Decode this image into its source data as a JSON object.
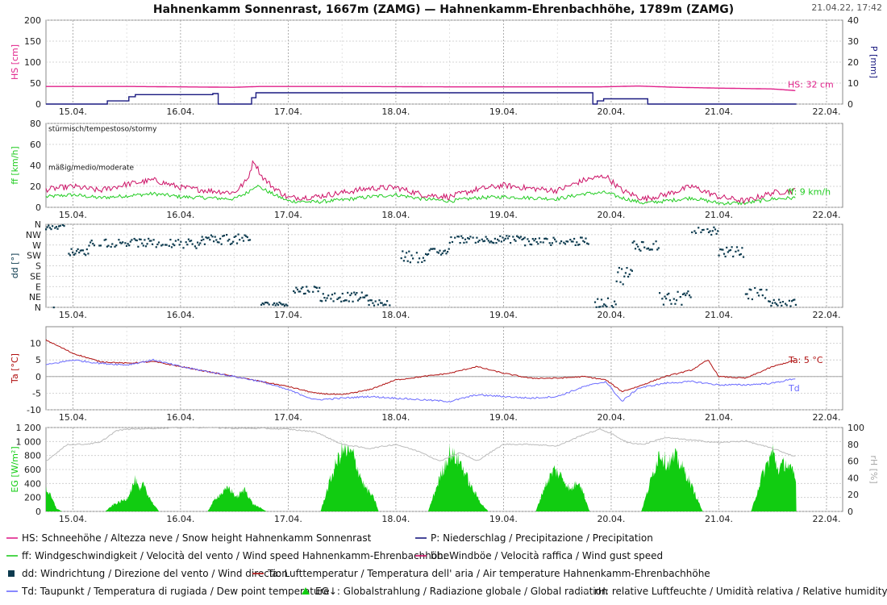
{
  "header": {
    "title": "Hahnenkamm Sonnenrast, 1667m (ZAMG) — Hahnenkamm-Ehrenbachhöhe, 1789m (ZAMG)",
    "timestamp": "21.04.22, 17:42"
  },
  "colors": {
    "HS": "#e0218a",
    "P": "#1a1a80",
    "ff": "#22cc22",
    "bb": "#cc1166",
    "dd": "#0d3b4f",
    "Ta": "#b01010",
    "Td": "#6b6bff",
    "EG": "#11cc11",
    "rH": "#bbbbbb"
  },
  "legend": [
    {
      "key": "HS",
      "symbol": "line",
      "text": "HS: Schneehöhe / Altezza neve / Snow height  Hahnenkamm Sonnenrast"
    },
    {
      "key": "P",
      "symbol": "line",
      "text": "P: Niederschlag / Precipitazione / Precipitation"
    },
    {
      "key": "ff",
      "symbol": "line",
      "text": "ff: Windgeschwindigkeit / Velocità del vento / Wind speed  Hahnenkamm-Ehrenbachhöhe"
    },
    {
      "key": "bb",
      "symbol": "line",
      "text": "bb: Windböe / Velocità raffica / Wind gust speed"
    },
    {
      "key": "dd",
      "symbol": "square",
      "text": "dd: Windrichtung / Direzione del vento / Wind direction"
    },
    {
      "key": "Ta",
      "symbol": "line",
      "text": "Ta: Lufttemperatur / Temperatura dell' aria / Air temperature  Hahnenkamm-Ehrenbachhöhe"
    },
    {
      "key": "Td",
      "symbol": "line",
      "text": "Td: Taupunkt / Temperatura di rugiada / Dew point temperature"
    },
    {
      "key": "EG",
      "symbol": "triangle",
      "text": "EG↓: Globalstrahlung / Radiazione globale / Global radiation"
    },
    {
      "key": "rH",
      "symbol": "line",
      "text": "rH: relative Luftfeuchte / Umidità relativa / Relative humidity"
    }
  ],
  "chart_data": [
    {
      "type": "line",
      "x_ticks": [
        "15.04.",
        "16.04.",
        "17.04.",
        "18.04.",
        "19.04.",
        "20.04.",
        "21.04.",
        "22.04."
      ],
      "ylabel": "HS [cm]",
      "ylim": [
        0,
        200
      ],
      "y_ticks": [
        0,
        50,
        100,
        150,
        200
      ],
      "y2label": "P [mm]",
      "y2lim": [
        0,
        40
      ],
      "y2_ticks": [
        0,
        10,
        20,
        30,
        40
      ],
      "end_label": "HS: 32 cm",
      "series": [
        {
          "key": "HS",
          "axis": "y",
          "x": [
            14.75,
            15.5,
            16.5,
            16.75,
            17.5,
            18.5,
            19.5,
            19.9,
            20.25,
            20.6,
            21.0,
            21.5,
            21.72
          ],
          "values": [
            42,
            42,
            40,
            42,
            42,
            41,
            41,
            41,
            43,
            40,
            38,
            36,
            32
          ]
        },
        {
          "key": "P",
          "axis": "y2",
          "step": true,
          "x": [
            14.75,
            15.27,
            15.32,
            15.37,
            15.52,
            15.58,
            16.3,
            16.35,
            16.62,
            16.66,
            16.7,
            17.5,
            19.83,
            19.87,
            19.93,
            20.3,
            20.34,
            21.72
          ],
          "values": [
            0,
            0,
            1.5,
            1.5,
            3.5,
            4.5,
            5,
            0,
            0,
            3,
            5.4,
            5.4,
            0,
            1.5,
            2.5,
            2.5,
            0,
            0
          ]
        }
      ]
    },
    {
      "type": "line",
      "x_ticks": [
        "15.04.",
        "16.04.",
        "17.04.",
        "18.04.",
        "19.04.",
        "20.04.",
        "21.04.",
        "22.04."
      ],
      "ylabel": "ff [km/h]",
      "ylim": [
        0,
        80
      ],
      "y_ticks": [
        0,
        20,
        40,
        60,
        80
      ],
      "annotations": [
        {
          "text": "stürmisch/tempestoso/stormy",
          "value": 75
        },
        {
          "text": "mäßig/medio/moderate",
          "value": 38
        }
      ],
      "end_label": "ff: 9 km/h",
      "series": [
        {
          "key": "ff",
          "x": [
            14.75,
            15.0,
            15.25,
            15.5,
            15.75,
            16.0,
            16.25,
            16.5,
            16.62,
            16.7,
            16.85,
            17.0,
            17.25,
            17.5,
            17.75,
            18.0,
            18.25,
            18.5,
            18.75,
            19.0,
            19.25,
            19.5,
            19.75,
            19.95,
            20.1,
            20.3,
            20.5,
            20.75,
            21.0,
            21.25,
            21.5,
            21.72
          ],
          "values": [
            10,
            12,
            9,
            11,
            13,
            10,
            9,
            8,
            14,
            21,
            13,
            6,
            5,
            7,
            10,
            12,
            8,
            6,
            9,
            10,
            9,
            8,
            13,
            14,
            9,
            4,
            6,
            9,
            4,
            4,
            8,
            9
          ]
        },
        {
          "key": "bb",
          "x": [
            14.75,
            15.0,
            15.25,
            15.5,
            15.75,
            16.0,
            16.25,
            16.5,
            16.62,
            16.68,
            16.75,
            16.85,
            17.0,
            17.25,
            17.5,
            17.75,
            18.0,
            18.25,
            18.5,
            18.75,
            19.0,
            19.25,
            19.5,
            19.75,
            19.95,
            20.1,
            20.3,
            20.5,
            20.75,
            21.0,
            21.25,
            21.5,
            21.72
          ],
          "values": [
            17,
            20,
            16,
            22,
            26,
            19,
            16,
            14,
            26,
            45,
            30,
            20,
            9,
            10,
            14,
            18,
            19,
            12,
            10,
            17,
            21,
            18,
            16,
            26,
            30,
            16,
            8,
            12,
            20,
            10,
            6,
            14,
            16
          ]
        }
      ]
    },
    {
      "type": "scatter",
      "x_ticks": [
        "15.04.",
        "16.04.",
        "17.04.",
        "18.04.",
        "19.04.",
        "20.04.",
        "21.04.",
        "22.04."
      ],
      "ylabel": "dd [°]",
      "ylim": [
        0,
        360
      ],
      "y_tick_labels": [
        "N",
        "NE",
        "E",
        "SE",
        "S",
        "SW",
        "W",
        "NW",
        "N"
      ],
      "series": [
        {
          "key": "dd",
          "segments": [
            {
              "x0": 14.75,
              "x1": 14.92,
              "center": 350,
              "spread": 12
            },
            {
              "x0": 14.95,
              "x1": 15.15,
              "center": 240,
              "spread": 14
            },
            {
              "x0": 15.15,
              "x1": 15.75,
              "center": 280,
              "spread": 18
            },
            {
              "x0": 15.75,
              "x1": 16.2,
              "center": 275,
              "spread": 20
            },
            {
              "x0": 16.2,
              "x1": 16.65,
              "center": 295,
              "spread": 22
            },
            {
              "x0": 16.75,
              "x1": 17.0,
              "center": 15,
              "spread": 8
            },
            {
              "x0": 17.05,
              "x1": 17.3,
              "center": 75,
              "spread": 20
            },
            {
              "x0": 17.3,
              "x1": 17.75,
              "center": 45,
              "spread": 20
            },
            {
              "x0": 17.75,
              "x1": 17.95,
              "center": 20,
              "spread": 12
            },
            {
              "x0": 18.05,
              "x1": 18.3,
              "center": 220,
              "spread": 25
            },
            {
              "x0": 18.3,
              "x1": 18.5,
              "center": 240,
              "spread": 15
            },
            {
              "x0": 18.5,
              "x1": 19.2,
              "center": 295,
              "spread": 16
            },
            {
              "x0": 19.2,
              "x1": 19.8,
              "center": 285,
              "spread": 18
            },
            {
              "x0": 19.85,
              "x1": 20.05,
              "center": 20,
              "spread": 20
            },
            {
              "x0": 20.05,
              "x1": 20.2,
              "center": 140,
              "spread": 40
            },
            {
              "x0": 20.2,
              "x1": 20.45,
              "center": 270,
              "spread": 25
            },
            {
              "x0": 20.45,
              "x1": 20.75,
              "center": 40,
              "spread": 30
            },
            {
              "x0": 20.75,
              "x1": 21.0,
              "center": 335,
              "spread": 20
            },
            {
              "x0": 21.0,
              "x1": 21.25,
              "center": 240,
              "spread": 22
            },
            {
              "x0": 21.25,
              "x1": 21.45,
              "center": 60,
              "spread": 25
            },
            {
              "x0": 21.45,
              "x1": 21.72,
              "center": 20,
              "spread": 15
            }
          ]
        }
      ]
    },
    {
      "type": "line",
      "x_ticks": [
        "15.04.",
        "16.04.",
        "17.04.",
        "18.04.",
        "19.04.",
        "20.04.",
        "21.04.",
        "22.04."
      ],
      "ylabel": "Ta [°C]",
      "ylim": [
        -10,
        15
      ],
      "y_ticks": [
        -10,
        -5,
        0,
        5,
        10
      ],
      "end_labels": [
        {
          "key": "Ta",
          "text": "Ta: 5 °C"
        },
        {
          "key": "Td",
          "text": "Td"
        }
      ],
      "series": [
        {
          "key": "Ta",
          "x": [
            14.75,
            15.0,
            15.25,
            15.5,
            15.75,
            16.0,
            16.25,
            16.5,
            16.75,
            17.0,
            17.25,
            17.5,
            17.75,
            18.0,
            18.25,
            18.5,
            18.75,
            19.0,
            19.25,
            19.5,
            19.75,
            19.95,
            20.1,
            20.25,
            20.5,
            20.75,
            20.9,
            21.0,
            21.25,
            21.5,
            21.72
          ],
          "values": [
            11,
            7,
            4.5,
            4,
            4.5,
            3,
            1.5,
            0,
            -1.5,
            -3,
            -5,
            -5.5,
            -4,
            -1,
            0,
            1,
            3,
            1,
            -0.5,
            -0.5,
            0,
            -1,
            -4.5,
            -3,
            0,
            2,
            5,
            0,
            -0.5,
            3,
            5
          ]
        },
        {
          "key": "Td",
          "x": [
            14.75,
            15.0,
            15.25,
            15.5,
            15.75,
            16.0,
            16.25,
            16.5,
            16.75,
            17.0,
            17.25,
            17.5,
            17.75,
            18.0,
            18.25,
            18.5,
            18.75,
            19.0,
            19.25,
            19.5,
            19.75,
            19.95,
            20.1,
            20.25,
            20.5,
            20.75,
            21.0,
            21.25,
            21.5,
            21.72
          ],
          "values": [
            3.5,
            5,
            4,
            3.5,
            5,
            3,
            1.5,
            0,
            -1.5,
            -4,
            -7,
            -6.5,
            -6,
            -6.5,
            -7,
            -7.5,
            -5.5,
            -6,
            -6.5,
            -6,
            -3,
            -1.5,
            -7.5,
            -3.5,
            -2,
            -1.5,
            -2.5,
            -2.5,
            -2,
            -0.5
          ]
        }
      ]
    },
    {
      "type": "area",
      "x_ticks": [
        "15.04.",
        "16.04.",
        "17.04.",
        "18.04.",
        "19.04.",
        "20.04.",
        "21.04.",
        "22.04."
      ],
      "ylabel": "EG [W/m²]",
      "ylim": [
        0,
        1200
      ],
      "y_ticks": [
        0,
        200,
        400,
        600,
        800,
        1000,
        1200
      ],
      "y_tick_labels": [
        "0",
        "200",
        "400",
        "600",
        "800",
        "1 000",
        "1 200"
      ],
      "y2label": "rH [%]",
      "y2lim": [
        0,
        100
      ],
      "y2_ticks": [
        0,
        20,
        40,
        60,
        80,
        100
      ],
      "series": [
        {
          "key": "EG",
          "axis": "y",
          "area": true,
          "x": [
            14.75,
            14.8,
            14.85,
            14.9,
            15.3,
            15.38,
            15.5,
            15.58,
            15.62,
            15.66,
            15.7,
            15.75,
            15.8,
            16.25,
            16.33,
            16.45,
            16.52,
            16.6,
            16.67,
            16.8,
            17.3,
            17.38,
            17.45,
            17.5,
            17.6,
            17.7,
            17.8,
            17.84,
            18.3,
            18.4,
            18.5,
            18.6,
            18.7,
            18.8,
            18.86,
            19.3,
            19.38,
            19.47,
            19.55,
            19.62,
            19.7,
            19.8,
            20.28,
            20.37,
            20.45,
            20.52,
            20.6,
            20.7,
            20.78,
            20.85,
            21.3,
            21.4,
            21.5,
            21.55,
            21.62,
            21.7,
            21.72
          ],
          "values": [
            330,
            200,
            40,
            0,
            0,
            100,
            180,
            450,
            280,
            400,
            230,
            100,
            0,
            0,
            200,
            340,
            200,
            320,
            110,
            0,
            0,
            400,
            700,
            870,
            820,
            380,
            180,
            0,
            0,
            450,
            840,
            700,
            350,
            100,
            0,
            0,
            350,
            600,
            480,
            300,
            450,
            0,
            0,
            450,
            850,
            680,
            780,
            520,
            250,
            0,
            0,
            500,
            860,
            600,
            700,
            520,
            380
          ]
        },
        {
          "key": "rH",
          "axis": "y2",
          "x": [
            14.75,
            14.95,
            15.1,
            15.25,
            15.4,
            15.5,
            15.75,
            16.0,
            16.25,
            16.5,
            16.75,
            17.0,
            17.25,
            17.5,
            17.75,
            18.0,
            18.25,
            18.4,
            18.6,
            18.75,
            19.0,
            19.25,
            19.5,
            19.75,
            19.9,
            20.0,
            20.15,
            20.3,
            20.5,
            20.75,
            21.0,
            21.25,
            21.5,
            21.72
          ],
          "values": [
            60,
            80,
            80,
            82,
            96,
            98,
            99,
            100,
            100,
            99,
            99,
            98,
            95,
            80,
            75,
            80,
            70,
            60,
            70,
            60,
            80,
            80,
            78,
            92,
            98,
            93,
            82,
            80,
            88,
            85,
            82,
            84,
            75,
            65
          ]
        }
      ]
    }
  ]
}
